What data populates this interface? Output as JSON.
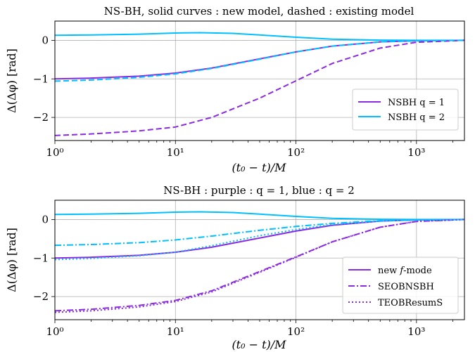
{
  "colors": {
    "purple": "#8a2be2",
    "blue": "#00bfff"
  },
  "chart_data": [
    {
      "type": "line",
      "title": "NS-BH, solid curves : new model, dashed : existing model",
      "xlabel": "(t₀ − t)/M",
      "ylabel": "Δ(Δφ) [rad]",
      "xscale": "log",
      "xlim": [
        1,
        2500
      ],
      "ylim": [
        -2.6,
        0.5
      ],
      "x_ticks": [
        1,
        10,
        100,
        1000
      ],
      "x_tick_labels": [
        "10⁰",
        "10¹",
        "10²",
        "10³"
      ],
      "y_ticks": [
        0,
        -1,
        -2
      ],
      "y_tick_labels": [
        "0",
        "−1",
        "−2"
      ],
      "grid": true,
      "legend_position": "lower-right",
      "series": [
        {
          "name": "NSBH q = 1",
          "color": "purple",
          "style": "solid",
          "in_legend": true,
          "x": [
            1,
            2,
            5,
            10,
            20,
            50,
            100,
            200,
            500,
            1000,
            2500
          ],
          "y": [
            -1.0,
            -0.98,
            -0.93,
            -0.85,
            -0.72,
            -0.48,
            -0.3,
            -0.15,
            -0.04,
            -0.01,
            0.0
          ]
        },
        {
          "name": "NSBH q = 2",
          "color": "blue",
          "style": "solid",
          "in_legend": true,
          "x": [
            1,
            2,
            5,
            10,
            16,
            30,
            50,
            100,
            200,
            500,
            1000,
            2500
          ],
          "y": [
            0.13,
            0.14,
            0.16,
            0.19,
            0.2,
            0.18,
            0.14,
            0.08,
            0.03,
            0.005,
            0.0,
            0.0
          ]
        },
        {
          "color": "purple",
          "style": "dashed",
          "in_legend": false,
          "x": [
            1,
            2,
            5,
            10,
            20,
            50,
            100,
            200,
            500,
            1000,
            2500
          ],
          "y": [
            -2.47,
            -2.43,
            -2.35,
            -2.25,
            -2.0,
            -1.5,
            -1.05,
            -0.6,
            -0.2,
            -0.05,
            0.0
          ]
        },
        {
          "color": "blue",
          "style": "dashed",
          "in_legend": false,
          "x": [
            1,
            2,
            5,
            10,
            20,
            50,
            100,
            200,
            500,
            1000,
            2500
          ],
          "y": [
            -1.06,
            -1.03,
            -0.96,
            -0.87,
            -0.73,
            -0.49,
            -0.3,
            -0.15,
            -0.04,
            -0.01,
            0.0
          ]
        }
      ]
    },
    {
      "type": "line",
      "title": "NS-BH : purple : q = 1, blue : q = 2",
      "xlabel": "(t₀ − t)/M",
      "ylabel": "Δ(Δφ) [rad]",
      "xscale": "log",
      "xlim": [
        1,
        2500
      ],
      "ylim": [
        -2.6,
        0.5
      ],
      "x_ticks": [
        1,
        10,
        100,
        1000
      ],
      "x_tick_labels": [
        "10⁰",
        "10¹",
        "10²",
        "10³"
      ],
      "y_ticks": [
        0,
        -1,
        -2
      ],
      "y_tick_labels": [
        "0",
        "−1",
        "−2"
      ],
      "grid": true,
      "legend_position": "lower-right",
      "legend": [
        {
          "label": "new f-mode",
          "label_prefix": "new ",
          "label_italic": "f",
          "label_suffix": "-mode",
          "style": "solid"
        },
        {
          "label": "SEOBNSBH",
          "style": "dashdot"
        },
        {
          "label": "TEOBResumS",
          "style": "dotted"
        }
      ],
      "series": [
        {
          "color": "purple",
          "style": "solid",
          "x": [
            1,
            2,
            5,
            10,
            20,
            50,
            100,
            200,
            500,
            1000,
            2500
          ],
          "y": [
            -1.0,
            -0.98,
            -0.93,
            -0.85,
            -0.72,
            -0.48,
            -0.3,
            -0.15,
            -0.04,
            -0.01,
            0.0
          ]
        },
        {
          "color": "blue",
          "style": "solid",
          "x": [
            1,
            2,
            5,
            10,
            16,
            30,
            50,
            100,
            200,
            500,
            1000,
            2500
          ],
          "y": [
            0.13,
            0.14,
            0.16,
            0.19,
            0.2,
            0.18,
            0.14,
            0.08,
            0.03,
            0.005,
            0.0,
            0.0
          ]
        },
        {
          "color": "purple",
          "style": "dashdot",
          "x": [
            1,
            2,
            5,
            10,
            20,
            50,
            100,
            200,
            500,
            1000,
            2500
          ],
          "y": [
            -2.37,
            -2.33,
            -2.23,
            -2.1,
            -1.85,
            -1.35,
            -0.97,
            -0.58,
            -0.2,
            -0.05,
            0.0
          ]
        },
        {
          "color": "blue",
          "style": "dashdot",
          "x": [
            1,
            2,
            5,
            10,
            20,
            50,
            100,
            200,
            500,
            1000,
            2500
          ],
          "y": [
            -0.67,
            -0.65,
            -0.6,
            -0.53,
            -0.43,
            -0.28,
            -0.18,
            -0.1,
            -0.03,
            -0.01,
            0.0
          ]
        },
        {
          "color": "purple",
          "style": "dotted",
          "x": [
            1,
            2,
            5,
            10,
            20,
            50,
            100,
            200,
            500,
            1000,
            2500
          ],
          "y": [
            -2.41,
            -2.37,
            -2.27,
            -2.13,
            -1.88,
            -1.37,
            -0.98,
            -0.58,
            -0.2,
            -0.05,
            0.0
          ]
        },
        {
          "color": "blue",
          "style": "dotted",
          "x": [
            1,
            2,
            5,
            10,
            20,
            50,
            100,
            200,
            500,
            1000,
            2500
          ],
          "y": [
            -1.04,
            -1.01,
            -0.94,
            -0.85,
            -0.68,
            -0.42,
            -0.26,
            -0.13,
            -0.04,
            -0.01,
            0.0
          ]
        }
      ]
    }
  ]
}
